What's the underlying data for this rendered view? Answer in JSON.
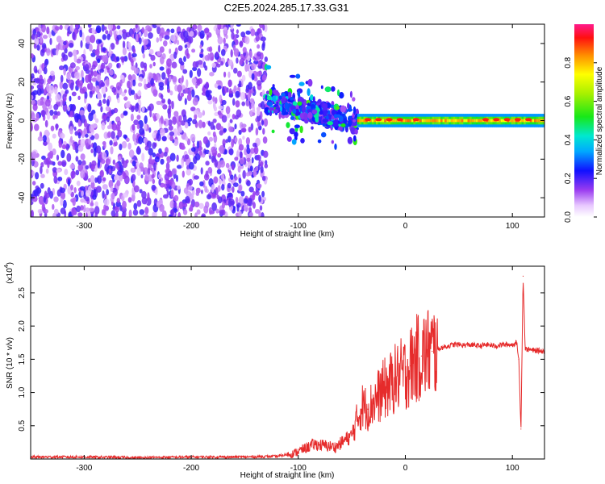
{
  "title": "C2E5.2024.285.17.33.G31",
  "chart_data": [
    {
      "type": "heatmap",
      "xlabel": "Height of straight line (km)",
      "ylabel": "Frequency (Hz)",
      "xlim": [
        -350,
        130
      ],
      "ylim": [
        -50,
        50
      ],
      "x_ticks": [
        -300,
        -200,
        -100,
        0,
        100
      ],
      "y_ticks": [
        -40,
        -20,
        0,
        20,
        40
      ],
      "colorbar": {
        "label": "Normalized spectral amplitude",
        "ticks": [
          "0.0",
          "0.2",
          "0.4",
          "0.6",
          "0.8"
        ],
        "range": [
          0,
          1
        ]
      },
      "regions": [
        {
          "x_range": [
            -350,
            -130
          ],
          "description": "broadband noise",
          "amplitude": 0.1
        },
        {
          "x_range": [
            -130,
            -45
          ],
          "center_freq": [
            10,
            0
          ],
          "spread": 12,
          "amplitude": 0.35
        },
        {
          "x_range": [
            -45,
            130
          ],
          "center_freq": 0,
          "spread": 2,
          "amplitude": 0.7
        }
      ]
    },
    {
      "type": "line",
      "xlabel": "Height of straight line (km)",
      "ylabel": "SNR (10 * v/v)",
      "y_multiplier": "(x10",
      "y_multiplier_exp": "4",
      "xlim": [
        -350,
        130
      ],
      "ylim": [
        0,
        2.9
      ],
      "x_ticks": [
        -300,
        -200,
        -100,
        0,
        100
      ],
      "y_ticks": [
        "0.5",
        "1.0",
        "1.5",
        "2.0",
        "2.5"
      ],
      "color": "#e62b2b",
      "series": [
        {
          "x": [
            -350,
            -300,
            -250,
            -200,
            -150,
            -120,
            -105,
            -95,
            -85,
            -75,
            -65,
            -55,
            -50,
            -45,
            -40,
            -35,
            -30,
            -25,
            -20,
            -15,
            -10,
            -5,
            0,
            5,
            10,
            15,
            20,
            25,
            30,
            35,
            40,
            45,
            50,
            55,
            60,
            65,
            70,
            75,
            80,
            85,
            90,
            95,
            100,
            104,
            106,
            108,
            110,
            112,
            115,
            120,
            125,
            130
          ],
          "y": [
            0.03,
            0.03,
            0.02,
            0.03,
            0.03,
            0.04,
            0.08,
            0.15,
            0.22,
            0.2,
            0.18,
            0.3,
            0.35,
            0.6,
            0.8,
            0.75,
            0.85,
            0.95,
            1.05,
            1.1,
            1.2,
            1.25,
            1.3,
            1.4,
            1.5,
            1.55,
            1.6,
            1.62,
            1.65,
            1.68,
            1.7,
            1.72,
            1.72,
            1.71,
            1.72,
            1.71,
            1.7,
            1.72,
            1.71,
            1.7,
            1.72,
            1.72,
            1.72,
            1.75,
            1.5,
            0.45,
            2.75,
            1.65,
            1.65,
            1.63,
            1.63,
            1.62
          ]
        }
      ]
    }
  ]
}
